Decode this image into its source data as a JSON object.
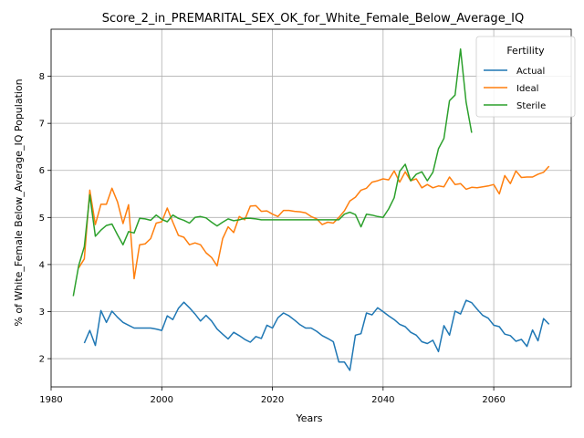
{
  "chart_data": {
    "type": "line",
    "title": "Score_2_in_PREMARITAL_SEX_OK_for_White_Female_Below_Average_IQ",
    "xlabel": "Years",
    "ylabel": "% of White_Female Below_Average_IQ Population",
    "xlim": [
      1980,
      2074
    ],
    "ylim": [
      1.4,
      9.0
    ],
    "xticks": [
      1980,
      2000,
      2020,
      2040,
      2060
    ],
    "yticks": [
      2,
      3,
      4,
      5,
      6,
      7,
      8
    ],
    "grid": true,
    "legend": {
      "title": "Fertility",
      "position": "top-right"
    },
    "series": [
      {
        "name": "Actual",
        "color": "#1f77b4",
        "x": [
          1986,
          1987,
          1988,
          1989,
          1990,
          1991,
          1992,
          1993,
          1994,
          1995,
          1996,
          1997,
          1998,
          1999,
          2000,
          2001,
          2002,
          2003,
          2004,
          2005,
          2006,
          2007,
          2008,
          2009,
          2010,
          2011,
          2012,
          2013,
          2014,
          2015,
          2016,
          2017,
          2018,
          2019,
          2020,
          2021,
          2022,
          2023,
          2024,
          2025,
          2026,
          2027,
          2028,
          2029,
          2030,
          2031,
          2032,
          2033,
          2034,
          2035,
          2036,
          2037,
          2038,
          2039,
          2040,
          2041,
          2042,
          2043,
          2044,
          2045,
          2046,
          2047,
          2048,
          2049,
          2050,
          2051,
          2052,
          2053,
          2054,
          2055,
          2056,
          2057,
          2058,
          2059,
          2060,
          2061,
          2062,
          2063,
          2064,
          2065,
          2066,
          2067,
          2068,
          2069,
          2070
        ],
        "y": [
          2.33,
          2.6,
          2.28,
          3.02,
          2.77,
          3.01,
          2.88,
          2.77,
          2.71,
          2.65,
          2.65,
          2.65,
          2.65,
          2.63,
          2.6,
          2.91,
          2.83,
          3.07,
          3.2,
          3.08,
          2.95,
          2.8,
          2.92,
          2.8,
          2.63,
          2.52,
          2.42,
          2.56,
          2.49,
          2.41,
          2.35,
          2.47,
          2.43,
          2.71,
          2.65,
          2.87,
          2.97,
          2.91,
          2.82,
          2.72,
          2.65,
          2.65,
          2.58,
          2.49,
          2.43,
          2.36,
          1.93,
          1.93,
          1.75,
          2.5,
          2.53,
          2.97,
          2.93,
          3.08,
          3.0,
          2.91,
          2.83,
          2.73,
          2.68,
          2.56,
          2.5,
          2.36,
          2.32,
          2.39,
          2.15,
          2.7,
          2.5,
          3.01,
          2.95,
          3.24,
          3.19,
          3.05,
          2.92,
          2.86,
          2.71,
          2.68,
          2.52,
          2.49,
          2.37,
          2.41,
          2.26,
          2.61,
          2.38,
          2.85,
          2.73
        ]
      },
      {
        "name": "Ideal",
        "color": "#ff7f0e",
        "x": [
          1985,
          1986,
          1987,
          1988,
          1989,
          1990,
          1991,
          1992,
          1993,
          1994,
          1995,
          1996,
          1997,
          1998,
          1999,
          2000,
          2001,
          2002,
          2003,
          2004,
          2005,
          2006,
          2007,
          2008,
          2009,
          2010,
          2011,
          2012,
          2013,
          2014,
          2015,
          2016,
          2017,
          2018,
          2019,
          2020,
          2021,
          2022,
          2023,
          2024,
          2025,
          2026,
          2027,
          2028,
          2029,
          2030,
          2031,
          2032,
          2033,
          2034,
          2035,
          2036,
          2037,
          2038,
          2039,
          2040,
          2041,
          2042,
          2043,
          2044,
          2045,
          2046,
          2047,
          2048,
          2049,
          2050,
          2051,
          2052,
          2053,
          2054,
          2055,
          2056,
          2057,
          2058,
          2059,
          2060,
          2061,
          2062,
          2063,
          2064,
          2065,
          2066,
          2067,
          2068,
          2069,
          2070
        ],
        "y": [
          3.93,
          4.12,
          5.58,
          4.85,
          5.28,
          5.28,
          5.62,
          5.33,
          4.87,
          5.27,
          3.7,
          4.42,
          4.44,
          4.55,
          4.88,
          4.91,
          5.2,
          4.9,
          4.62,
          4.58,
          4.42,
          4.46,
          4.42,
          4.25,
          4.15,
          3.97,
          4.55,
          4.8,
          4.68,
          5.02,
          4.95,
          5.24,
          5.25,
          5.13,
          5.14,
          5.07,
          5.02,
          5.15,
          5.15,
          5.13,
          5.12,
          5.1,
          5.02,
          4.97,
          4.85,
          4.9,
          4.88,
          5.0,
          5.14,
          5.35,
          5.43,
          5.58,
          5.62,
          5.75,
          5.78,
          5.82,
          5.8,
          5.99,
          5.75,
          5.97,
          5.78,
          5.82,
          5.63,
          5.7,
          5.63,
          5.67,
          5.65,
          5.86,
          5.7,
          5.72,
          5.6,
          5.64,
          5.63,
          5.65,
          5.67,
          5.7,
          5.5,
          5.89,
          5.72,
          5.99,
          5.85,
          5.86,
          5.86,
          5.92,
          5.96,
          6.09
        ]
      },
      {
        "name": "Sterile",
        "color": "#2ca02c",
        "x": [
          1984,
          1985,
          1986,
          1987,
          1988,
          1989,
          1990,
          1991,
          1992,
          1993,
          1994,
          1995,
          1996,
          1997,
          1998,
          1999,
          2000,
          2001,
          2002,
          2003,
          2004,
          2005,
          2006,
          2007,
          2008,
          2009,
          2010,
          2011,
          2012,
          2013,
          2014,
          2015,
          2016,
          2017,
          2018,
          2019,
          2020,
          2021,
          2022,
          2023,
          2024,
          2025,
          2026,
          2027,
          2028,
          2029,
          2030,
          2031,
          2032,
          2033,
          2034,
          2035,
          2036,
          2037,
          2038,
          2039,
          2040,
          2041,
          2042,
          2043,
          2044,
          2045,
          2046,
          2047,
          2048,
          2049,
          2050,
          2051,
          2052,
          2053,
          2054,
          2055,
          2056
        ],
        "y": [
          3.33,
          3.98,
          4.38,
          5.48,
          4.6,
          4.73,
          4.83,
          4.86,
          4.63,
          4.42,
          4.7,
          4.67,
          4.98,
          4.97,
          4.94,
          5.05,
          4.96,
          4.91,
          5.05,
          4.98,
          4.94,
          4.88,
          5.0,
          5.02,
          4.99,
          4.9,
          4.82,
          4.9,
          4.97,
          4.93,
          4.95,
          4.98,
          4.98,
          4.97,
          4.95,
          4.95,
          4.95,
          4.95,
          4.95,
          4.95,
          4.95,
          4.95,
          4.95,
          4.95,
          4.95,
          4.95,
          4.95,
          4.95,
          4.95,
          5.07,
          5.11,
          5.06,
          4.8,
          5.07,
          5.05,
          5.02,
          5.0,
          5.18,
          5.42,
          5.98,
          6.13,
          5.78,
          5.92,
          5.97,
          5.78,
          5.96,
          6.46,
          6.68,
          7.48,
          7.6,
          8.58,
          7.45,
          6.8
        ]
      }
    ]
  }
}
